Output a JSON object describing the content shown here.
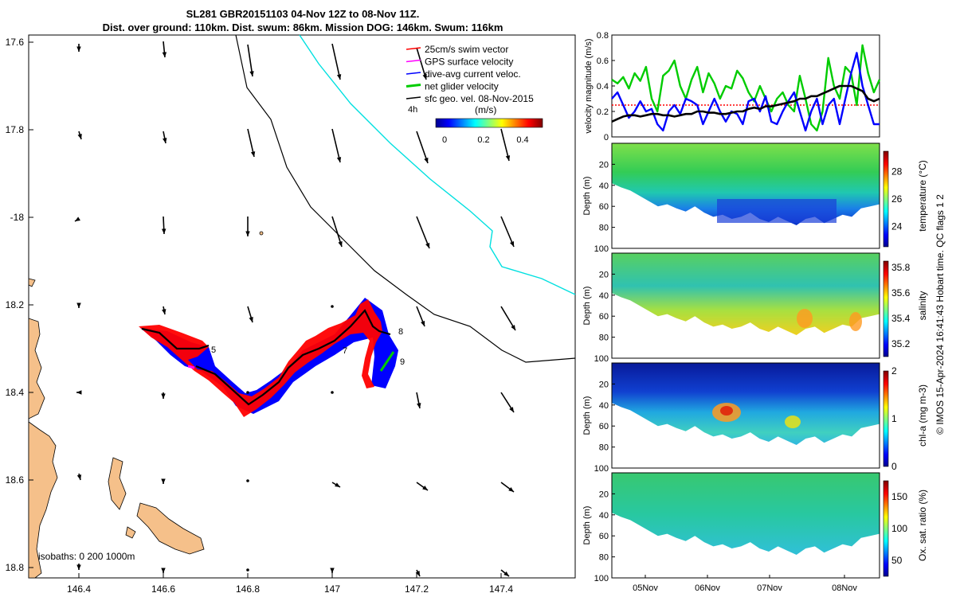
{
  "header": {
    "title_line1": "SL281 GBR20151103 04-Nov 12Z to 08-Nov 11Z.",
    "title_line2": "Dist. over ground: 110km. Dist. swum: 86km. Mission DOG: 146km. Swum: 116km"
  },
  "map": {
    "lon_ticks": [
      "146.4",
      "146.6",
      "146.8",
      "147",
      "147.2",
      "147.4"
    ],
    "lat_ticks": [
      "17.6",
      "17.8",
      "-18",
      "18.2",
      "18.4",
      "18.6",
      "18.8"
    ],
    "legend": [
      {
        "label": "25cm/s swim vector",
        "color": "#ff0000"
      },
      {
        "label": "GPS surface velocity",
        "color": "#ff00ff"
      },
      {
        "label": "dive-avg current veloc.",
        "color": "#0000ff"
      },
      {
        "label": "net glider velocity",
        "color": "#00cc00"
      },
      {
        "label": "sfc geo. vel. 08-Nov-2015",
        "color": "#000000"
      }
    ],
    "scale_label": "4h",
    "colorbar_unit": "(m/s)",
    "colorbar_ticks": [
      "0",
      "0.2",
      "0.4"
    ],
    "waypoints": [
      "5",
      "7",
      "8",
      "9"
    ],
    "isobaths_label": "isobaths: 0   200 1000m",
    "colors": {
      "land": "#f5c08a",
      "track": "#ff0000",
      "current": "#0000ff",
      "net": "#00cc00",
      "cyan": "#00e0e0"
    }
  },
  "chart_data": [
    {
      "type": "line",
      "title": "",
      "ylabel": "velocity magnitude (m/s)",
      "ylim": [
        0,
        0.8
      ],
      "yticks": [
        "0",
        "0.2",
        "0.4",
        "0.6",
        "0.8"
      ],
      "series": [
        {
          "name": "net glider velocity",
          "color": "#00cc00",
          "values": [
            0.45,
            0.42,
            0.47,
            0.38,
            0.5,
            0.44,
            0.55,
            0.3,
            0.2,
            0.48,
            0.52,
            0.6,
            0.4,
            0.3,
            0.45,
            0.55,
            0.35,
            0.5,
            0.42,
            0.3,
            0.4,
            0.38,
            0.52,
            0.46,
            0.35,
            0.28,
            0.4,
            0.3,
            0.2,
            0.3,
            0.35,
            0.25,
            0.2,
            0.48,
            0.3,
            0.1,
            0.05,
            0.2,
            0.62,
            0.4,
            0.3,
            0.55,
            0.5,
            0.25,
            0.72,
            0.5,
            0.35,
            0.45
          ]
        },
        {
          "name": "dive-avg current",
          "color": "#0000ff",
          "values": [
            0.3,
            0.35,
            0.25,
            0.15,
            0.2,
            0.28,
            0.2,
            0.22,
            0.1,
            0.05,
            0.2,
            0.25,
            0.18,
            0.3,
            0.28,
            0.25,
            0.1,
            0.2,
            0.3,
            0.2,
            0.12,
            0.2,
            0.18,
            0.1,
            0.28,
            0.3,
            0.2,
            0.32,
            0.12,
            0.1,
            0.2,
            0.28,
            0.35,
            0.2,
            0.05,
            0.2,
            0.3,
            0.1,
            0.25,
            0.3,
            0.1,
            0.3,
            0.5,
            0.66,
            0.4,
            0.25,
            0.1,
            0.1
          ]
        },
        {
          "name": "sfc geo. vel.",
          "color": "#000000",
          "values": [
            0.12,
            0.14,
            0.16,
            0.17,
            0.17,
            0.16,
            0.17,
            0.18,
            0.18,
            0.17,
            0.17,
            0.16,
            0.17,
            0.18,
            0.18,
            0.2,
            0.2,
            0.19,
            0.19,
            0.18,
            0.18,
            0.19,
            0.2,
            0.2,
            0.22,
            0.23,
            0.22,
            0.24,
            0.24,
            0.25,
            0.26,
            0.27,
            0.28,
            0.3,
            0.3,
            0.32,
            0.32,
            0.34,
            0.36,
            0.38,
            0.4,
            0.4,
            0.4,
            0.38,
            0.36,
            0.3,
            0.28,
            0.3
          ]
        },
        {
          "name": "25cm/s swim",
          "color": "#ff0000",
          "values": [
            0.25,
            0.25
          ]
        }
      ]
    },
    {
      "type": "heatmap",
      "ylabel": "Depth (m)",
      "ylim": [
        0,
        100
      ],
      "yticks": [
        "20",
        "40",
        "60",
        "80",
        "100"
      ],
      "colorbar_label": "temperature (°C)",
      "colorbar_ticks": [
        "24",
        "26",
        "28"
      ],
      "range": [
        22.5,
        29.5
      ]
    },
    {
      "type": "heatmap",
      "ylabel": "Depth (m)",
      "ylim": [
        0,
        100
      ],
      "yticks": [
        "20",
        "40",
        "60",
        "80",
        "100"
      ],
      "colorbar_label": "salinity",
      "colorbar_ticks": [
        "35.2",
        "35.4",
        "35.6",
        "35.8"
      ],
      "range": [
        35.1,
        35.85
      ]
    },
    {
      "type": "heatmap",
      "ylabel": "Depth (m)",
      "ylim": [
        0,
        100
      ],
      "yticks": [
        "20",
        "40",
        "60",
        "80",
        "100"
      ],
      "colorbar_label": "chl-a (mg m-3)",
      "colorbar_ticks": [
        "0",
        "1",
        "2"
      ],
      "range": [
        0,
        2
      ]
    },
    {
      "type": "heatmap",
      "ylabel": "Depth (m)",
      "ylim": [
        0,
        100
      ],
      "yticks": [
        "20",
        "40",
        "60",
        "80",
        "100"
      ],
      "colorbar_label": "Ox. sat. ratio (%)",
      "colorbar_ticks": [
        "50",
        "100",
        "150"
      ],
      "range": [
        25,
        175
      ]
    }
  ],
  "time_axis": {
    "ticks": [
      "05Nov",
      "06Nov",
      "07Nov",
      "08Nov"
    ]
  },
  "side_note": "© IMOS 15-Apr-2024 16:41:43 Hobart time. QC flags 1  2"
}
